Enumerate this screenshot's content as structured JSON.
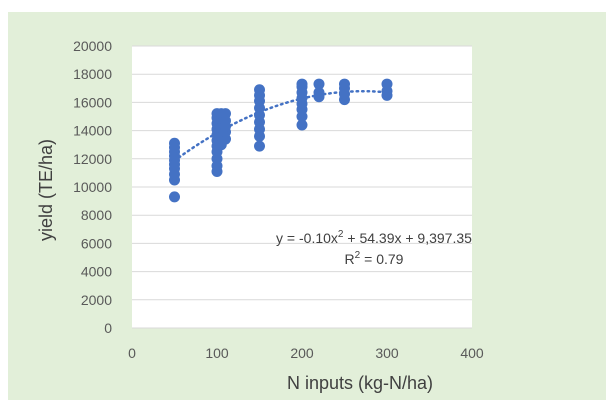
{
  "chart_data": {
    "type": "scatter",
    "title": "",
    "xlabel": "N inputs (kg-N/ha)",
    "ylabel": "yield (TE/ha)",
    "xlim": [
      0,
      400
    ],
    "ylim": [
      0,
      20000
    ],
    "x_ticks": [
      0,
      100,
      200,
      300,
      400
    ],
    "y_ticks": [
      0,
      2000,
      4000,
      6000,
      8000,
      10000,
      12000,
      14000,
      16000,
      18000,
      20000
    ],
    "x_tick_labels": [
      "0",
      "100",
      "200",
      "300",
      "400"
    ],
    "y_tick_labels": [
      "0",
      "2000",
      "4000",
      "6000",
      "8000",
      "10000",
      "12000",
      "14000",
      "16000",
      "18000",
      "20000"
    ],
    "grid": "horizontal",
    "legend": "none",
    "series": [
      {
        "color": "#4472c4",
        "points": [
          {
            "x": 50,
            "y": 9300
          },
          {
            "x": 50,
            "y": 10500
          },
          {
            "x": 50,
            "y": 10900
          },
          {
            "x": 50,
            "y": 11300
          },
          {
            "x": 50,
            "y": 11600
          },
          {
            "x": 50,
            "y": 11900
          },
          {
            "x": 50,
            "y": 12200
          },
          {
            "x": 50,
            "y": 12500
          },
          {
            "x": 50,
            "y": 12800
          },
          {
            "x": 50,
            "y": 13100
          },
          {
            "x": 100,
            "y": 11100
          },
          {
            "x": 100,
            "y": 11500
          },
          {
            "x": 100,
            "y": 12000
          },
          {
            "x": 100,
            "y": 12500
          },
          {
            "x": 100,
            "y": 12900
          },
          {
            "x": 100,
            "y": 13300
          },
          {
            "x": 100,
            "y": 13700
          },
          {
            "x": 100,
            "y": 14100
          },
          {
            "x": 100,
            "y": 14500
          },
          {
            "x": 100,
            "y": 14900
          },
          {
            "x": 100,
            "y": 15200
          },
          {
            "x": 105,
            "y": 13000
          },
          {
            "x": 105,
            "y": 13600
          },
          {
            "x": 105,
            "y": 14200
          },
          {
            "x": 105,
            "y": 14800
          },
          {
            "x": 105,
            "y": 15200
          },
          {
            "x": 110,
            "y": 13400
          },
          {
            "x": 110,
            "y": 13900
          },
          {
            "x": 110,
            "y": 14300
          },
          {
            "x": 110,
            "y": 14700
          },
          {
            "x": 110,
            "y": 15200
          },
          {
            "x": 150,
            "y": 12900
          },
          {
            "x": 150,
            "y": 13600
          },
          {
            "x": 150,
            "y": 14100
          },
          {
            "x": 150,
            "y": 14600
          },
          {
            "x": 150,
            "y": 15100
          },
          {
            "x": 150,
            "y": 15600
          },
          {
            "x": 150,
            "y": 16100
          },
          {
            "x": 150,
            "y": 16500
          },
          {
            "x": 150,
            "y": 16900
          },
          {
            "x": 200,
            "y": 14400
          },
          {
            "x": 200,
            "y": 15000
          },
          {
            "x": 200,
            "y": 15500
          },
          {
            "x": 200,
            "y": 15900
          },
          {
            "x": 200,
            "y": 16300
          },
          {
            "x": 200,
            "y": 16700
          },
          {
            "x": 200,
            "y": 17100
          },
          {
            "x": 200,
            "y": 17300
          },
          {
            "x": 220,
            "y": 16400
          },
          {
            "x": 220,
            "y": 16700
          },
          {
            "x": 220,
            "y": 17300
          },
          {
            "x": 250,
            "y": 16200
          },
          {
            "x": 250,
            "y": 16600
          },
          {
            "x": 250,
            "y": 17000
          },
          {
            "x": 250,
            "y": 17300
          },
          {
            "x": 300,
            "y": 16500
          },
          {
            "x": 300,
            "y": 16800
          },
          {
            "x": 300,
            "y": 17300
          }
        ]
      }
    ],
    "trendline": {
      "style": "dotted",
      "color": "#4472c4",
      "coefficients": {
        "a": -0.1,
        "b": 54.39,
        "c": 9397.35
      },
      "x_range": [
        50,
        300
      ],
      "equation_prefix": "y = -0.10x",
      "equation_suffix": " + 54.39x + 9,397.35",
      "r2_prefix": "R",
      "r2_suffix": " = 0.79",
      "superscript": "2"
    },
    "colors": {
      "outer_background": "#e2efd9",
      "plot_background": "#ffffff",
      "grid": "#d9d9d9",
      "marker": "#4472c4"
    }
  }
}
